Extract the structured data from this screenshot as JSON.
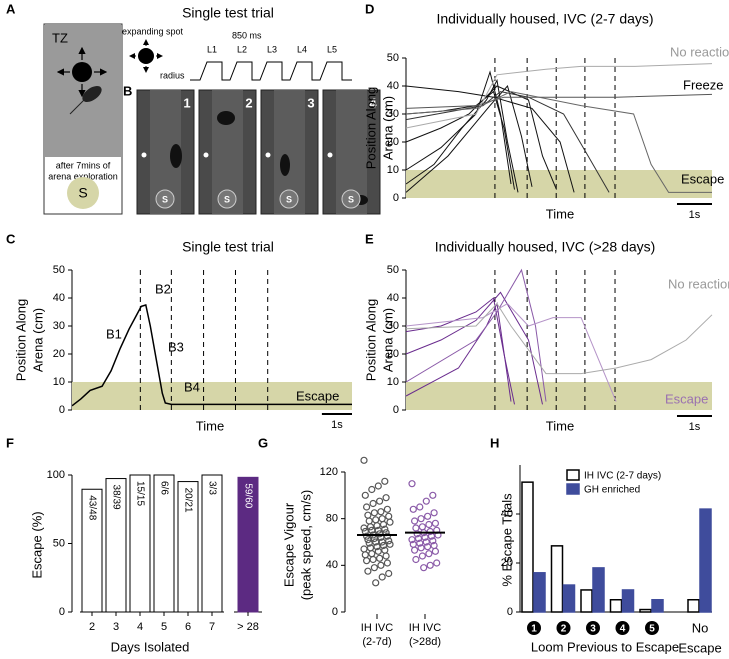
{
  "diagram": {
    "panel_a": "A",
    "tz": "TZ",
    "caption": [
      "after 7mins of",
      "arena exploration"
    ],
    "shelter": "S",
    "title": "Single test trial",
    "spot": "expanding spot",
    "radius": "radius",
    "duration": "850 ms",
    "looms": [
      "L1",
      "L2",
      "L3",
      "L4",
      "L5"
    ],
    "panel_b": "B",
    "frames": [
      "1",
      "2",
      "3",
      "4"
    ],
    "frame_shelter": "S"
  },
  "chart_data": [
    {
      "type": "line",
      "label": "C",
      "title": "Single test trial",
      "ylabel": [
        "Position Along",
        "Arena (cm)"
      ],
      "xlabel": "Time",
      "xlim": [
        0,
        9.3
      ],
      "ylim": [
        0,
        50
      ],
      "yticks": [
        0,
        10,
        20,
        30,
        40,
        50
      ],
      "band": [
        0,
        10
      ],
      "band_color": "#d6d6a8",
      "vlines": [
        2.27,
        3.3,
        4.37,
        5.43,
        6.5
      ],
      "scale_bar": {
        "value": 1,
        "label": "1s"
      },
      "annotations": [
        {
          "text": "B1",
          "color": "#000"
        },
        {
          "text": "B2",
          "color": "#000"
        },
        {
          "text": "B3",
          "color": "#000"
        },
        {
          "text": "B4",
          "color": "#000"
        },
        {
          "text": "Escape",
          "color": "#000"
        }
      ],
      "series": [
        {
          "color": "#000000",
          "x": [
            0,
            0.3,
            0.6,
            1.0,
            1.3,
            1.6,
            1.9,
            2.1,
            2.3,
            2.45,
            2.6,
            2.8,
            3.0,
            3.1,
            3.3,
            9.3
          ],
          "values": [
            1.5,
            4,
            7,
            8.5,
            14,
            22,
            29,
            33,
            37,
            37.5,
            30,
            18,
            6,
            2.5,
            2,
            2
          ]
        }
      ]
    },
    {
      "type": "line",
      "label": "D",
      "title": "Individually housed, IVC (2-7 days)",
      "ylabel": [
        "Position Along",
        "Arena (cm)"
      ],
      "xlabel": "Time",
      "xlim": [
        0,
        8.74
      ],
      "ylim": [
        0,
        50
      ],
      "yticks": [
        0,
        10,
        20,
        30,
        40,
        50
      ],
      "band": [
        0,
        10
      ],
      "band_color": "#d6d6a8",
      "vlines": [
        2.54,
        3.46,
        4.29,
        5.11,
        5.97
      ],
      "scale_bar": {
        "value": 1,
        "label": "1s"
      },
      "annotations": [
        {
          "text": "No reaction",
          "color": "#999999"
        },
        {
          "text": "Freeze",
          "color": "#000"
        },
        {
          "text": "Escape",
          "color": "#000"
        }
      ],
      "series": [
        {
          "color": "#111111",
          "x": [
            0,
            0.8,
            1.6,
            2.3,
            2.6,
            2.9,
            3.2
          ],
          "values": [
            5,
            12,
            25,
            35,
            42,
            20,
            2
          ]
        },
        {
          "color": "#111111",
          "x": [
            0,
            1,
            2,
            2.5,
            2.8,
            3.1
          ],
          "values": [
            30,
            31,
            33,
            38,
            25,
            3
          ]
        },
        {
          "color": "#111111",
          "x": [
            0,
            1,
            1.8,
            2.6,
            3.5,
            3.9,
            4.3
          ],
          "values": [
            20,
            25,
            30,
            40,
            35,
            15,
            3
          ]
        },
        {
          "color": "#111111",
          "x": [
            0,
            1.5,
            2.5,
            3.6,
            4.4,
            4.8
          ],
          "values": [
            40,
            38,
            36,
            32,
            20,
            2
          ]
        },
        {
          "color": "#111111",
          "x": [
            0,
            1,
            2,
            2.4,
            2.7,
            3.0
          ],
          "values": [
            10,
            18,
            30,
            45,
            30,
            5
          ]
        },
        {
          "color": "#111111",
          "x": [
            0,
            1.2,
            2.4,
            2.9,
            3.3,
            3.6
          ],
          "values": [
            2,
            15,
            33,
            40,
            22,
            4
          ]
        },
        {
          "color": "#333333",
          "x": [
            0,
            2.2,
            2.7,
            3.5,
            4.5,
            5.2,
            5.8
          ],
          "values": [
            28,
            33,
            38,
            36,
            30,
            15,
            2
          ]
        },
        {
          "color": "#555555",
          "x": [
            0,
            2,
            2.8,
            4,
            6,
            8.74
          ],
          "values": [
            32,
            33,
            36,
            36,
            36,
            37
          ]
        },
        {
          "color": "#aaaaaa",
          "x": [
            0,
            2,
            2.6,
            4,
            5,
            6.5,
            8.74
          ],
          "values": [
            25,
            30,
            44,
            46,
            47,
            47,
            48
          ]
        },
        {
          "color": "#666666",
          "x": [
            0,
            2,
            3,
            5,
            6.5,
            7,
            7.5,
            8.74
          ],
          "values": [
            30,
            32,
            38,
            33,
            30,
            12,
            2,
            2
          ]
        }
      ]
    },
    {
      "type": "line",
      "label": "E",
      "title": "Individually housed, IVC (>28 days)",
      "ylabel": [
        "Position Along",
        "Arena (cm)"
      ],
      "xlabel": "Time",
      "xlim": [
        0,
        8.74
      ],
      "ylim": [
        0,
        50
      ],
      "yticks": [
        0,
        10,
        20,
        30,
        40,
        50
      ],
      "band": [
        0,
        10
      ],
      "band_color": "#d6d6a8",
      "vlines": [
        2.54,
        3.46,
        4.29,
        5.11,
        5.97
      ],
      "scale_bar": {
        "value": 1,
        "label": "1s"
      },
      "annotations": [
        {
          "text": "No reaction",
          "color": "#999999"
        },
        {
          "text": "Escape",
          "color": "#9a70b0"
        }
      ],
      "series": [
        {
          "color": "#6a2c8e",
          "x": [
            0,
            1,
            2,
            2.5,
            2.8,
            3.1
          ],
          "values": [
            28,
            30,
            35,
            40,
            20,
            2
          ]
        },
        {
          "color": "#6a2c8e",
          "x": [
            0,
            1.5,
            2.3,
            2.6,
            3.0
          ],
          "values": [
            5,
            15,
            30,
            38,
            3
          ]
        },
        {
          "color": "#6a2c8e",
          "x": [
            0,
            1,
            2,
            2.7,
            3.5,
            3.9
          ],
          "values": [
            20,
            25,
            32,
            42,
            25,
            2
          ]
        },
        {
          "color": "#8a5aa8",
          "x": [
            0,
            2,
            2.6,
            3.3,
            3.7,
            4.0
          ],
          "values": [
            10,
            25,
            35,
            50,
            30,
            3
          ]
        },
        {
          "color": "#b594c8",
          "x": [
            0,
            2.2,
            2.9,
            3.5,
            4.2,
            5.0,
            5.6,
            6.0
          ],
          "values": [
            30,
            33,
            38,
            30,
            33,
            33,
            15,
            3
          ]
        },
        {
          "color": "#aaaaaa",
          "x": [
            0,
            2,
            2.6,
            3,
            4,
            5,
            6,
            7,
            8,
            8.74
          ],
          "values": [
            29,
            30,
            38,
            30,
            13,
            13,
            15,
            18,
            25,
            34
          ]
        }
      ]
    },
    {
      "type": "bar",
      "label": "F",
      "ylabel": [
        "Escape (%)"
      ],
      "xlabel": "Days Isolated",
      "ylim": [
        0,
        100
      ],
      "yticks": [
        0,
        50,
        100
      ],
      "categories": [
        "2",
        "3",
        "4",
        "5",
        "6",
        "7",
        "> 28"
      ],
      "values": [
        89.6,
        97.4,
        100,
        100,
        95.2,
        100,
        98.3
      ],
      "value_labels": [
        "43/48",
        "38/39",
        "15/15",
        "6/6",
        "20/21",
        "3/3",
        "59/60"
      ],
      "colors": [
        "#ffffff",
        "#ffffff",
        "#ffffff",
        "#ffffff",
        "#ffffff",
        "#ffffff",
        "#5c2a82"
      ]
    },
    {
      "type": "strip",
      "label": "G",
      "ylabel": [
        "Escape Vigour",
        "(peak speed, cm/s)"
      ],
      "ylim": [
        0,
        120
      ],
      "yticks": [
        0,
        40,
        80,
        120
      ],
      "categories": [
        [
          "IH IVC",
          "(2-7d)"
        ],
        [
          "IH IVC",
          "(>28d)"
        ]
      ],
      "means": [
        66,
        68
      ],
      "series": [
        {
          "color": "#555555",
          "values": [
            130,
            112,
            108,
            105,
            100,
            98,
            95,
            93,
            90,
            88,
            86,
            85,
            83,
            82,
            80,
            79,
            78,
            77,
            75,
            74,
            73,
            72,
            71,
            70,
            70,
            69,
            68,
            67,
            66,
            65,
            65,
            64,
            63,
            62,
            61,
            60,
            60,
            59,
            58,
            57,
            56,
            55,
            54,
            53,
            52,
            50,
            49,
            48,
            46,
            45,
            44,
            42,
            40,
            38,
            35,
            33,
            30,
            25
          ]
        },
        {
          "color": "#8a5aa8",
          "values": [
            110,
            100,
            95,
            90,
            88,
            85,
            82,
            80,
            78,
            76,
            75,
            73,
            72,
            70,
            69,
            68,
            67,
            66,
            65,
            64,
            63,
            62,
            61,
            60,
            59,
            58,
            57,
            56,
            55,
            53,
            52,
            50,
            48,
            45,
            42,
            40,
            38
          ]
        }
      ]
    },
    {
      "type": "grouped_bar",
      "label": "H",
      "ylabel": [
        "% Escape Trials"
      ],
      "xlabel": "Loom Previous to Escape",
      "ylim": [
        0,
        60
      ],
      "yticks": [
        0,
        20,
        40
      ],
      "categories": [
        [
          "1"
        ],
        [
          "2"
        ],
        [
          "3"
        ],
        [
          "4"
        ],
        [
          "5"
        ],
        [
          "No",
          "Escape"
        ]
      ],
      "circled": [
        true,
        true,
        true,
        true,
        true,
        false
      ],
      "series": [
        {
          "name": "IH IVC (2-7 days)",
          "color": "#ffffff",
          "values": [
            53,
            27,
            9,
            5,
            1,
            5
          ]
        },
        {
          "name": "GH enriched",
          "color": "#3f4c9c",
          "values": [
            16,
            11,
            18,
            9,
            5,
            42
          ]
        }
      ]
    }
  ]
}
